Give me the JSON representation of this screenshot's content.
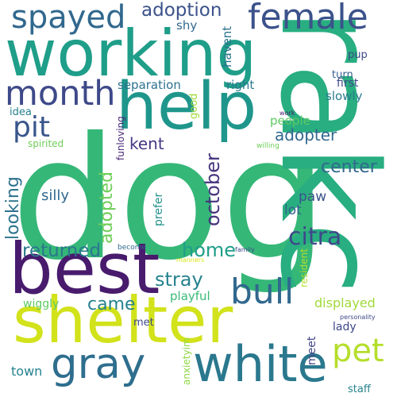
{
  "words": [
    {
      "text": "dog",
      "color": "#35b778"
    },
    {
      "text": "rakc",
      "color": "#28ae80"
    },
    {
      "text": "shelter",
      "color": "#d2e21b"
    },
    {
      "text": "working",
      "color": "#1f9e89"
    },
    {
      "text": "best",
      "color": "#481b6d"
    },
    {
      "text": "help",
      "color": "#1f968b"
    },
    {
      "text": "gray",
      "color": "#2e6e8e"
    },
    {
      "text": "white",
      "color": "#2a788e"
    },
    {
      "text": "female",
      "color": "#3b528b"
    },
    {
      "text": "spayed",
      "color": "#31688e"
    },
    {
      "text": "month",
      "color": "#3e4989"
    },
    {
      "text": "pit",
      "color": "#39568c"
    },
    {
      "text": "bull",
      "color": "#31688e"
    },
    {
      "text": "pet",
      "color": "#b5de2b"
    },
    {
      "text": "adoption",
      "color": "#3b528b"
    },
    {
      "text": "citra",
      "color": "#3e4989"
    },
    {
      "text": "returned",
      "color": "#2a788e"
    },
    {
      "text": "home",
      "color": "#1f9e89"
    },
    {
      "text": "stray",
      "color": "#26828e"
    },
    {
      "text": "came",
      "color": "#26828e"
    },
    {
      "text": "october",
      "color": "#46337e"
    },
    {
      "text": "adopted",
      "color": "#6ece58"
    },
    {
      "text": "looking",
      "color": "#2c728e"
    },
    {
      "text": "center",
      "color": "#31688e"
    },
    {
      "text": "adopter",
      "color": "#31688e"
    },
    {
      "text": "kent",
      "color": "#443983"
    },
    {
      "text": "silly",
      "color": "#31688e"
    },
    {
      "text": "paw",
      "color": "#3b528b"
    },
    {
      "text": "lot",
      "color": "#35608d"
    },
    {
      "text": "displayed",
      "color": "#a0da39"
    },
    {
      "text": "separation",
      "color": "#2c728e"
    },
    {
      "text": "right",
      "color": "#2a788e"
    },
    {
      "text": "slowly",
      "color": "#287c8e"
    },
    {
      "text": "people",
      "color": "#5ec962"
    },
    {
      "text": "first",
      "color": "#3e4989"
    },
    {
      "text": "pup",
      "color": "#3e4989"
    },
    {
      "text": "turn",
      "color": "#35608d"
    },
    {
      "text": "havent",
      "color": "#2c728e"
    },
    {
      "text": "shy",
      "color": "#31688e"
    },
    {
      "text": "idea",
      "color": "#26828e"
    },
    {
      "text": "spirited",
      "color": "#6ece58"
    },
    {
      "text": "funloving",
      "color": "#482878"
    },
    {
      "text": "good",
      "color": "#a0da39"
    },
    {
      "text": "prefer",
      "color": "#21918c"
    },
    {
      "text": "resident",
      "color": "#b5de2b"
    },
    {
      "text": "playful",
      "color": "#3aba76"
    },
    {
      "text": "wiggly",
      "color": "#5ec962"
    },
    {
      "text": "lady",
      "color": "#3e4989"
    },
    {
      "text": "met",
      "color": "#3e4989"
    },
    {
      "text": "town",
      "color": "#26828e"
    },
    {
      "text": "meet",
      "color": "#414487"
    },
    {
      "text": "staff",
      "color": "#26828e"
    },
    {
      "text": "anxietyim",
      "color": "#8fd744"
    },
    {
      "text": "become",
      "color": "#31688e"
    },
    {
      "text": "manners",
      "color": "#dde318"
    },
    {
      "text": "family",
      "color": "#3e4989"
    },
    {
      "text": "personality",
      "color": "#3e4989"
    },
    {
      "text": "work",
      "color": "#481b6d"
    },
    {
      "text": "willing",
      "color": "#6ece58"
    }
  ]
}
